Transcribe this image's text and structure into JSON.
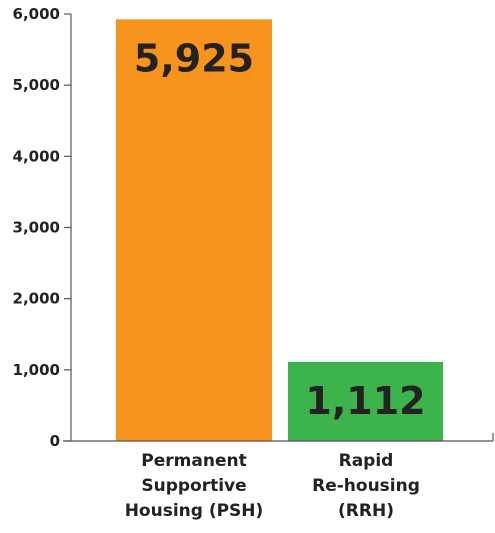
{
  "chart_data": {
    "type": "bar",
    "categories": [
      "Permanent Supportive Housing (PSH)",
      "Rapid Re-housing (RRH)"
    ],
    "category_label_lines": [
      [
        "Permanent",
        "Supportive",
        "Housing (PSH)"
      ],
      [
        "Rapid",
        "Re-housing",
        "(RRH)"
      ]
    ],
    "values": [
      5925,
      1112
    ],
    "data_labels": [
      "5,925",
      "1,112"
    ],
    "bar_colors": [
      "#F7941D",
      "#3CB44B"
    ],
    "ylim": [
      0,
      6000
    ],
    "yticks": [
      0,
      1000,
      2000,
      3000,
      4000,
      5000,
      6000
    ],
    "ytick_labels": [
      "0",
      "1,000",
      "2,000",
      "3,000",
      "4,000",
      "5,000",
      "6,000"
    ],
    "grid": false,
    "title": "",
    "xlabel": "",
    "ylabel": ""
  }
}
